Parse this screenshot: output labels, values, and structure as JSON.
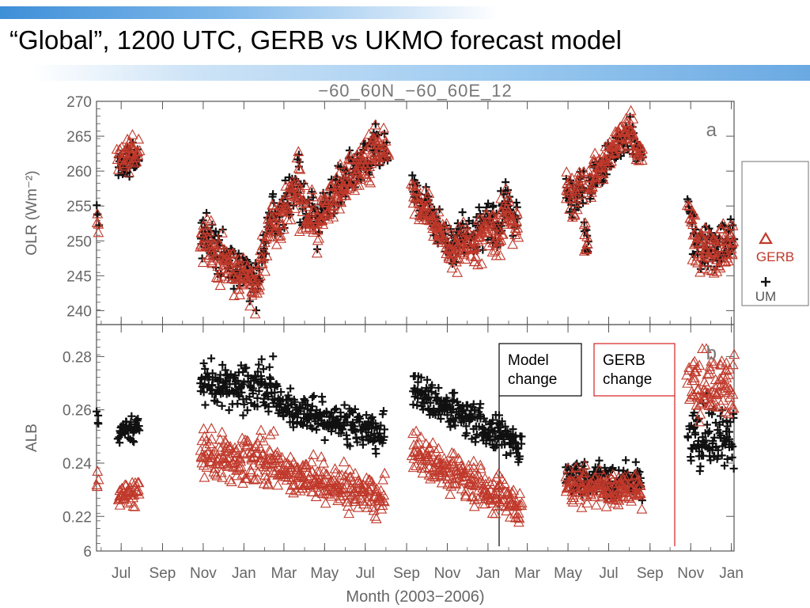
{
  "slide": {
    "title": "“Global”, 1200 UTC, GERB vs UKMO forecast model"
  },
  "theme": {
    "band_color": "#5aa3e4",
    "gerb_color": "#c0392b",
    "um_color": "#111111",
    "axis_color": "#555555"
  },
  "chart_data": {
    "type": "scatter",
    "title": "−60_60N_−60_60E_12",
    "xlabel": "Month (2003−2006)",
    "x_ticks": [
      "Jul",
      "Sep",
      "Nov",
      "Jan",
      "Mar",
      "May",
      "Jul",
      "Sep",
      "Nov",
      "Jan",
      "Mar",
      "May",
      "Jul",
      "Sep",
      "Nov",
      "Jan"
    ],
    "x_tick_dates": [
      "2003-07-01",
      "2003-09-01",
      "2003-11-01",
      "2004-01-01",
      "2004-03-01",
      "2004-05-01",
      "2004-07-01",
      "2004-09-01",
      "2004-11-01",
      "2005-01-01",
      "2005-03-01",
      "2005-05-01",
      "2005-07-01",
      "2005-09-01",
      "2005-11-01",
      "2006-01-01"
    ],
    "xlim": [
      "2003-05-25",
      "2006-01-05"
    ],
    "legend": {
      "position": "right",
      "entries": [
        "GERB",
        "UM"
      ]
    },
    "panels": [
      {
        "label": "a",
        "ylabel": "OLR (Wm⁻²)",
        "ylim": [
          238,
          270
        ],
        "yticks": [
          "240",
          "245",
          "250",
          "255",
          "260",
          "265",
          "270"
        ],
        "segments": [
          {
            "start": "2003-05-25",
            "end": "2003-05-28",
            "ums": 254,
            "ume": 254,
            "off": -1.5,
            "sd": 1.5
          },
          {
            "start": "2003-06-26",
            "end": "2003-07-28",
            "ums": 261,
            "ume": 262,
            "off": 1.0,
            "sd": 1.5
          },
          {
            "start": "2003-10-28",
            "end": "2004-01-20",
            "ums": 251,
            "ume": 244,
            "off": -0.6,
            "sd": 2.3
          },
          {
            "start": "2004-01-20",
            "end": "2004-02-15",
            "ums": 244,
            "ume": 256,
            "off": -0.6,
            "sd": 2.3
          },
          {
            "start": "2004-02-15",
            "end": "2004-03-25",
            "ums": 252,
            "ume": 259,
            "off": -0.5,
            "sd": 2.3
          },
          {
            "start": "2004-03-25",
            "end": "2004-04-22",
            "ums": 255,
            "ume": 252,
            "off": -0.5,
            "sd": 2.3
          },
          {
            "start": "2004-04-22",
            "end": "2004-07-20",
            "ums": 254,
            "ume": 264,
            "off": -0.3,
            "sd": 2.2
          },
          {
            "start": "2004-07-20",
            "end": "2004-08-03",
            "ums": 263,
            "ume": 263,
            "off": 0.5,
            "sd": 1.5
          },
          {
            "start": "2004-09-10",
            "end": "2004-11-10",
            "ums": 258,
            "ume": 249,
            "off": -0.5,
            "sd": 2.2
          },
          {
            "start": "2004-11-10",
            "end": "2005-01-22",
            "ums": 250,
            "ume": 253,
            "off": -1.2,
            "sd": 2.2
          },
          {
            "start": "2005-01-22",
            "end": "2005-02-15",
            "ums": 256,
            "ume": 253,
            "off": -1.0,
            "sd": 1.8
          },
          {
            "start": "2005-04-28",
            "end": "2005-05-25",
            "ums": 256,
            "ume": 258,
            "off": 0.3,
            "sd": 2.0
          },
          {
            "start": "2005-05-25",
            "end": "2005-06-01",
            "ums": 252,
            "ume": 250,
            "off": 0.3,
            "sd": 2.0
          },
          {
            "start": "2005-06-01",
            "end": "2005-08-05",
            "ums": 258,
            "ume": 266,
            "off": 0.5,
            "sd": 1.8
          },
          {
            "start": "2005-08-05",
            "end": "2005-08-20",
            "ums": 264,
            "ume": 263,
            "off": 0.0,
            "sd": 1.5
          },
          {
            "start": "2005-10-28",
            "end": "2005-11-05",
            "ums": 255,
            "ume": 253,
            "off": -0.5,
            "sd": 1.5
          },
          {
            "start": "2005-11-05",
            "end": "2006-01-05",
            "ums": 249,
            "ume": 250,
            "off": -0.5,
            "sd": 2.3
          }
        ]
      },
      {
        "label": "b",
        "ylabel": "ALB",
        "ylim": [
          0.207,
          0.292
        ],
        "yticks": [
          "6",
          "0.22",
          "0.24",
          "0.26",
          "0.28"
        ],
        "segments": [
          {
            "start": "2003-05-25",
            "end": "2003-05-28",
            "ums": 0.257,
            "ume": 0.257,
            "off": -0.023,
            "sd": 0.004
          },
          {
            "start": "2003-06-26",
            "end": "2003-07-28",
            "ums": 0.251,
            "ume": 0.254,
            "off": -0.024,
            "sd": 0.003
          },
          {
            "start": "2003-10-28",
            "end": "2004-02-20",
            "ums": 0.27,
            "ume": 0.268,
            "off": -0.027,
            "sd": 0.006
          },
          {
            "start": "2004-02-20",
            "end": "2004-07-30",
            "ums": 0.262,
            "ume": 0.25,
            "off": -0.024,
            "sd": 0.005
          },
          {
            "start": "2004-09-10",
            "end": "2005-02-20",
            "ums": 0.268,
            "ume": 0.246,
            "off": -0.023,
            "sd": 0.005
          },
          {
            "start": "2005-04-28",
            "end": "2005-08-20",
            "ums": 0.235,
            "ume": 0.233,
            "off": -0.003,
            "sd": 0.005
          },
          {
            "start": "2005-10-28",
            "end": "2006-01-05",
            "ums": 0.25,
            "ume": 0.25,
            "off": 0.02,
            "sd": 0.008
          }
        ]
      }
    ],
    "annotations": [
      {
        "text": [
          "Model",
          "change"
        ],
        "date": "2005-02-01",
        "color": "#000000"
      },
      {
        "text": [
          "GERB",
          "change"
        ],
        "date": "2005-10-26",
        "color": "#d62020"
      }
    ]
  }
}
